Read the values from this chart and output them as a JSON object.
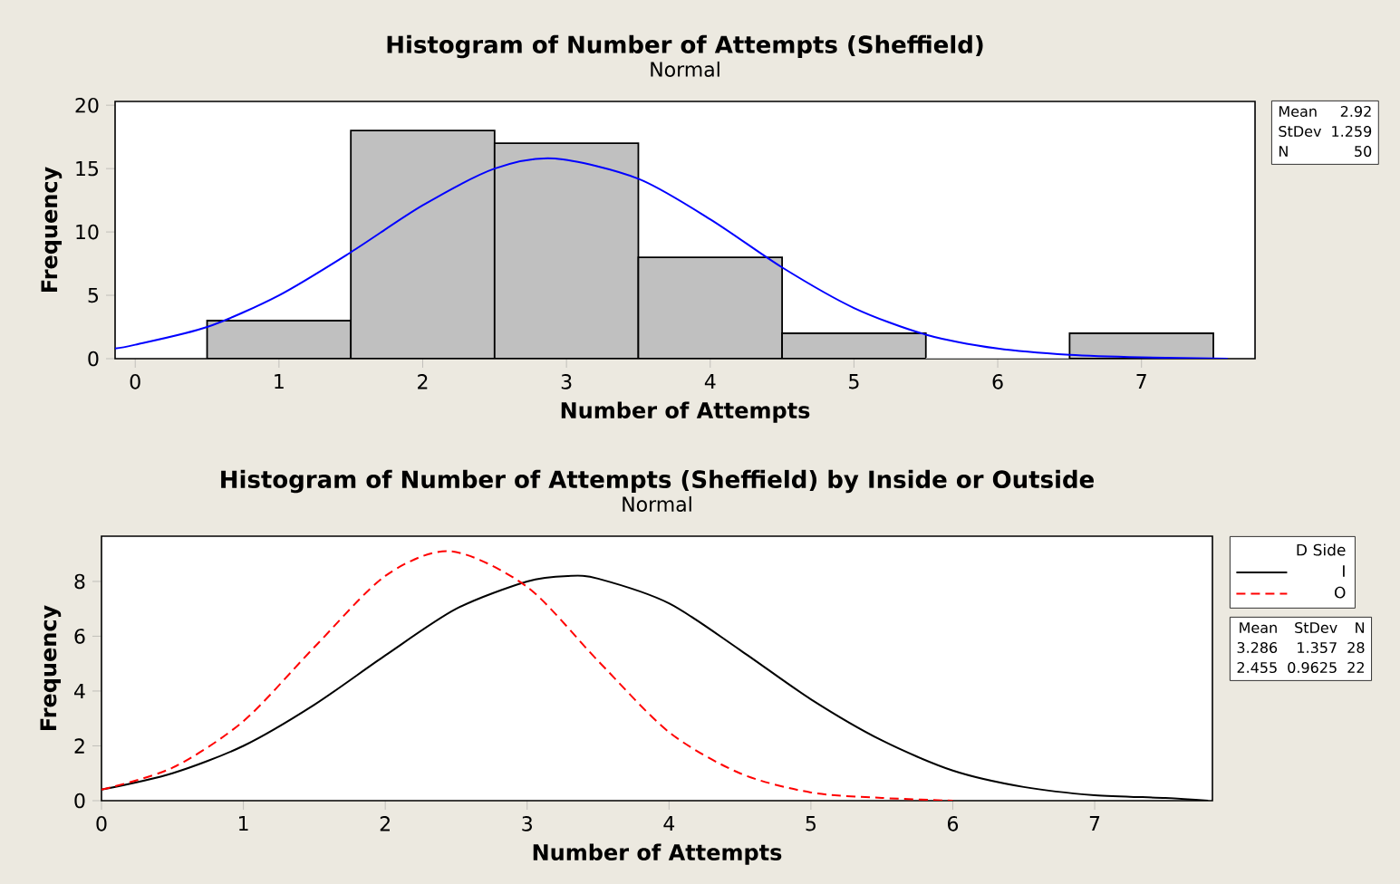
{
  "chart_data": [
    {
      "type": "histogram",
      "title": "Histogram of Number of Attempts (Sheffield)",
      "subtitle": "Normal",
      "xlabel": "Number of Attempts",
      "ylabel": "Frequency",
      "xlim": [
        -0.14,
        7.79
      ],
      "ylim": [
        0,
        20.3
      ],
      "xticks": [
        0,
        1,
        2,
        3,
        4,
        5,
        6,
        7
      ],
      "yticks": [
        0,
        5,
        10,
        15,
        20
      ],
      "series": [
        {
          "type": "histogram",
          "color": "#c0c0c0",
          "bins": [
            0.5,
            1.5,
            2.5,
            3.5,
            4.5,
            5.5,
            6.5,
            7.5
          ],
          "values": [
            3,
            18,
            17,
            8,
            2,
            0,
            2
          ]
        },
        {
          "type": "line",
          "color": "#0000ff",
          "x": [
            -0.14,
            0,
            0.5,
            1,
            1.5,
            2,
            2.5,
            2.92,
            3.5,
            4,
            4.5,
            5,
            5.5,
            6,
            6.5,
            7,
            7.6
          ],
          "values": [
            0.8,
            1.1,
            2.5,
            5.0,
            8.4,
            12.1,
            15.0,
            15.8,
            14.2,
            11.0,
            7.2,
            4.0,
            1.9,
            0.8,
            0.3,
            0.1,
            0
          ]
        }
      ],
      "marker": "none",
      "line_style": "solid",
      "annotations": [
        "Mean",
        "2.92",
        "StDev",
        "1.259",
        "N",
        "50"
      ]
    },
    {
      "type": "line",
      "title": "Histogram of Number of Attempts (Sheffield) by Inside or Outside",
      "subtitle": "Normal",
      "xlabel": "Number of Attempts",
      "ylabel": "Frequency",
      "xlim": [
        0,
        7.83
      ],
      "ylim": [
        0,
        9.65
      ],
      "xticks": [
        0,
        1,
        2,
        3,
        4,
        5,
        6,
        7
      ],
      "yticks": [
        0,
        2,
        4,
        6,
        8
      ],
      "legend": "right",
      "legend_title": "D Side",
      "marker": "none",
      "series": [
        {
          "name": "I",
          "color": "#000000",
          "line_style": "solid",
          "x": [
            0,
            0.5,
            1,
            1.5,
            2,
            2.5,
            3,
            3.29,
            3.5,
            4,
            4.5,
            5,
            5.5,
            6,
            6.5,
            7,
            7.5,
            7.8
          ],
          "values": [
            0.4,
            1.0,
            2.0,
            3.5,
            5.3,
            7.0,
            8.0,
            8.2,
            8.1,
            7.2,
            5.5,
            3.7,
            2.2,
            1.1,
            0.5,
            0.2,
            0.1,
            0
          ]
        },
        {
          "name": "O",
          "color": "#ff0000",
          "line_style": "dashed",
          "x": [
            0,
            0.5,
            1,
            1.5,
            2,
            2.46,
            3,
            3.5,
            4,
            4.5,
            5,
            5.5,
            6
          ],
          "values": [
            0.4,
            1.2,
            2.9,
            5.6,
            8.2,
            9.1,
            7.8,
            5.1,
            2.5,
            1.0,
            0.3,
            0.1,
            0
          ]
        }
      ],
      "annotations": [
        "Mean",
        "StDev",
        "N",
        "3.286",
        "1.357",
        "28",
        "2.455",
        "0.9625",
        "22"
      ]
    }
  ]
}
